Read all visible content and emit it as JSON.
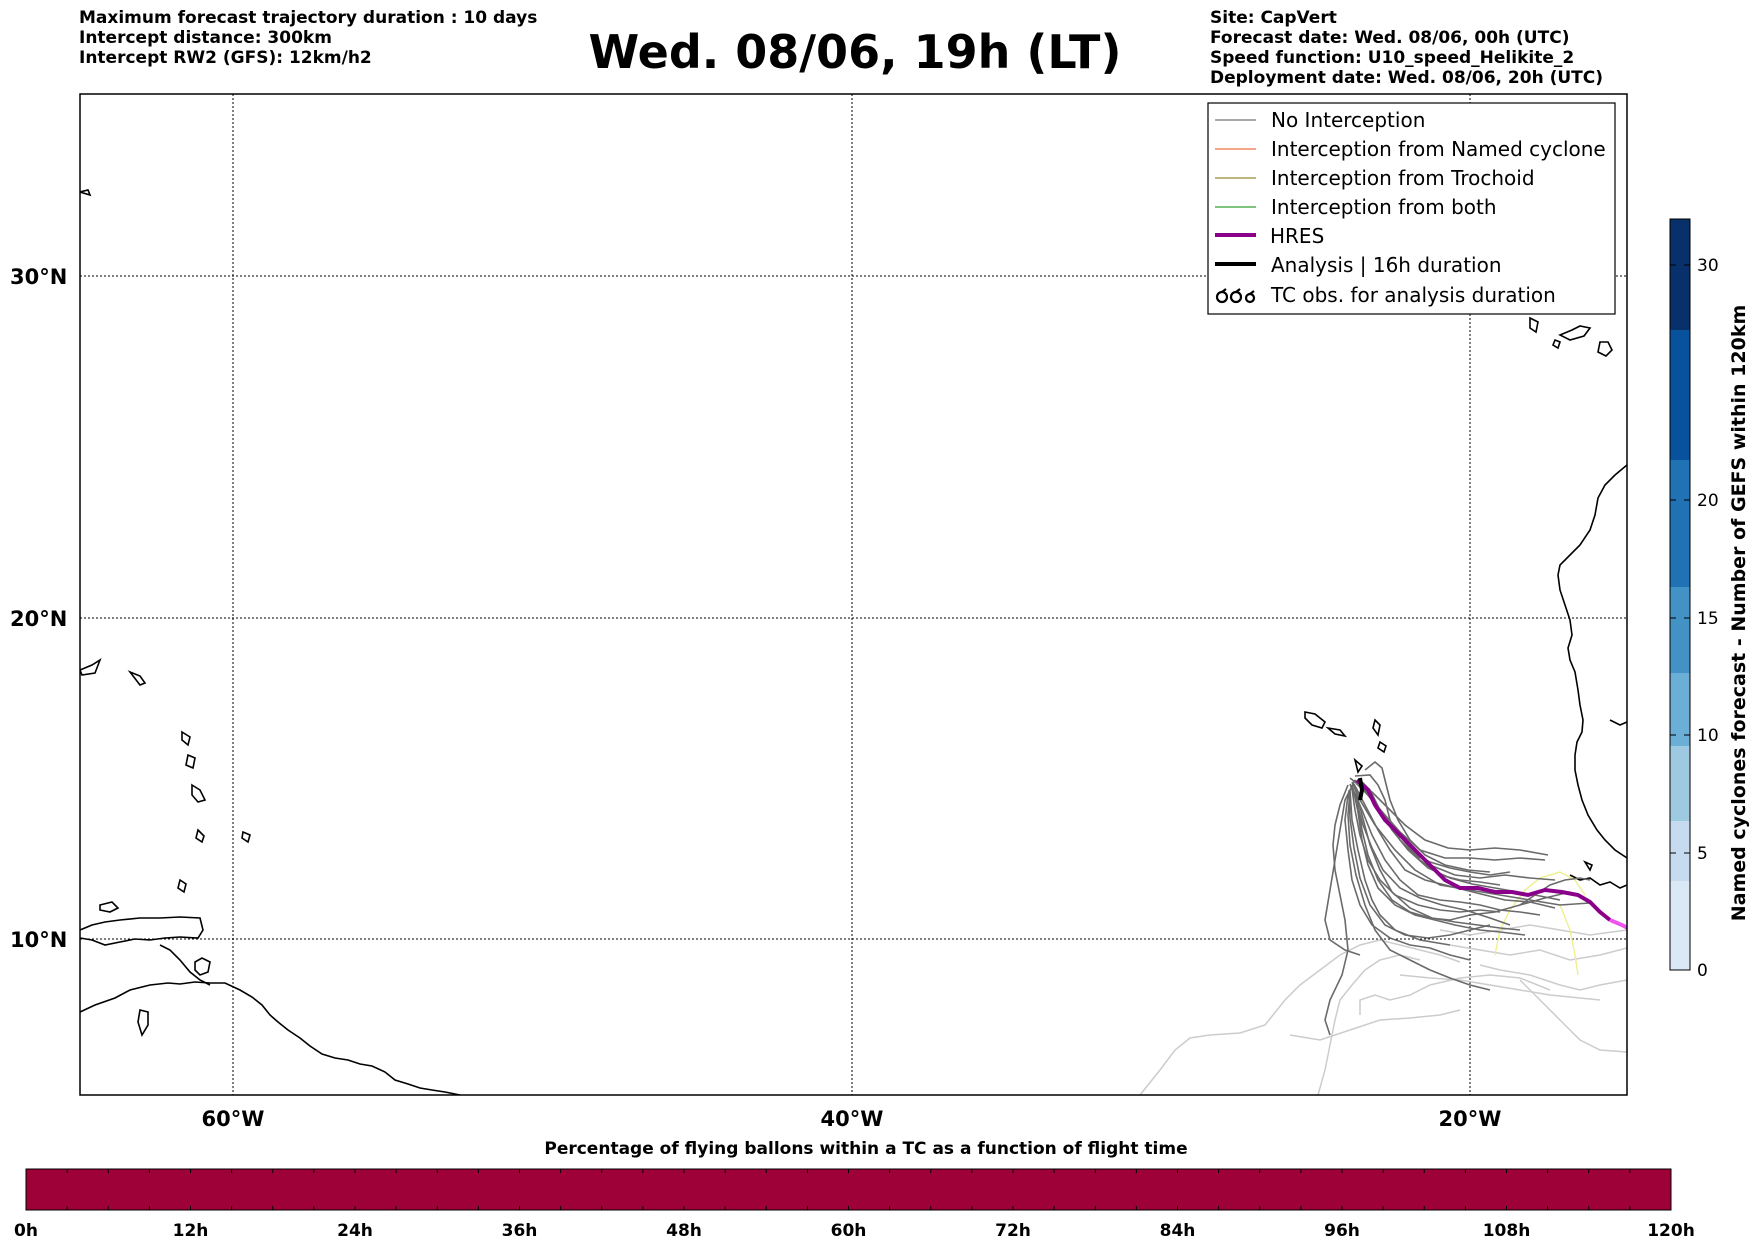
{
  "header_left": {
    "line1": "Maximum forecast trajectory duration : 10 days",
    "line2": "Intercept distance: 300km",
    "line3": "Intercept RW2 (GFS):  12km/h2"
  },
  "title": "Wed. 08/06, 19h (LT)",
  "header_right": {
    "site": "Site: CapVert",
    "forecast_date": "Forecast date: Wed. 08/06, 00h (UTC)",
    "speed_function": "Speed function: U10_speed_Helikite_2",
    "deployment_date": "Deployment date: Wed. 08/06, 20h (UTC)"
  },
  "map": {
    "lat_labels": [
      "30°N",
      "20°N",
      "10°N"
    ],
    "lon_labels": [
      "60°W",
      "40°W",
      "20°W"
    ]
  },
  "legend": {
    "items": [
      {
        "label": "No Interception",
        "color": "#777777",
        "style": "thin"
      },
      {
        "label": "Interception from Named cyclone",
        "color": "#f07040",
        "style": "thin"
      },
      {
        "label": "Interception from Trochoid",
        "color": "#9a8a30",
        "style": "thin"
      },
      {
        "label": "Interception from both",
        "color": "#30a030",
        "style": "thin"
      },
      {
        "label": "HRES",
        "color": "#8b008b",
        "style": "thick"
      },
      {
        "label": "Analysis | 16h duration",
        "color": "#000000",
        "style": "thick"
      },
      {
        "label": "TC obs. for analysis duration",
        "color": "#000000",
        "style": "symbol"
      }
    ]
  },
  "colorbar_right": {
    "title": "Named cyclones forecast - Number of GEFS within 120km",
    "ticks": [
      "0",
      "5",
      "10",
      "15",
      "20",
      "30"
    ],
    "colors": [
      "#dbe9f6",
      "#c6dbef",
      "#9ecae1",
      "#6baed6",
      "#4292c6",
      "#2171b5",
      "#08519c",
      "#08306b"
    ]
  },
  "colorbar_bottom": {
    "title": "Percentage of flying ballons within a TC as a function of flight time",
    "ticks": [
      "0h",
      "12h",
      "24h",
      "36h",
      "48h",
      "60h",
      "72h",
      "84h",
      "96h",
      "108h",
      "120h"
    ],
    "fill_color": "#9e0038"
  }
}
